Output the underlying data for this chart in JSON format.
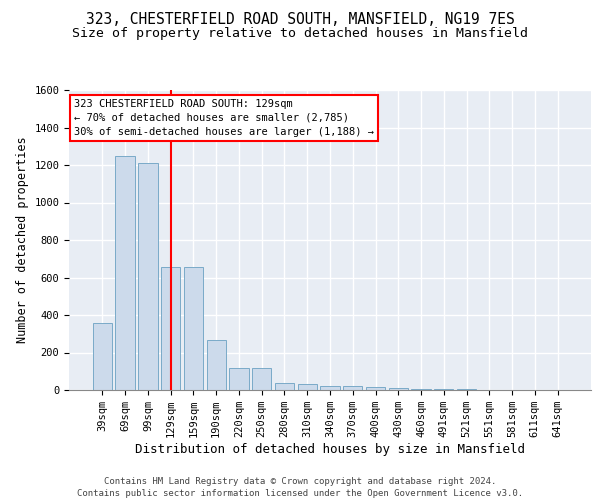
{
  "title1": "323, CHESTERFIELD ROAD SOUTH, MANSFIELD, NG19 7ES",
  "title2": "Size of property relative to detached houses in Mansfield",
  "xlabel": "Distribution of detached houses by size in Mansfield",
  "ylabel": "Number of detached properties",
  "footer": "Contains HM Land Registry data © Crown copyright and database right 2024.\nContains public sector information licensed under the Open Government Licence v3.0.",
  "categories": [
    "39sqm",
    "69sqm",
    "99sqm",
    "129sqm",
    "159sqm",
    "190sqm",
    "220sqm",
    "250sqm",
    "280sqm",
    "310sqm",
    "340sqm",
    "370sqm",
    "400sqm",
    "430sqm",
    "460sqm",
    "491sqm",
    "521sqm",
    "551sqm",
    "581sqm",
    "611sqm",
    "641sqm"
  ],
  "values": [
    360,
    1250,
    1210,
    655,
    655,
    265,
    115,
    115,
    40,
    30,
    20,
    20,
    15,
    10,
    5,
    5,
    5,
    2,
    2,
    2,
    2
  ],
  "bar_color": "#ccdaeb",
  "bar_edge_color": "#7aaac8",
  "red_line_index": 3,
  "annotation_text": "323 CHESTERFIELD ROAD SOUTH: 129sqm\n← 70% of detached houses are smaller (2,785)\n30% of semi-detached houses are larger (1,188) →",
  "ylim": [
    0,
    1600
  ],
  "yticks": [
    0,
    200,
    400,
    600,
    800,
    1000,
    1200,
    1400,
    1600
  ],
  "background_color": "#e8edf4",
  "grid_color": "#ffffff",
  "title1_fontsize": 10.5,
  "title2_fontsize": 9.5,
  "ylabel_fontsize": 8.5,
  "xlabel_fontsize": 9,
  "tick_fontsize": 7.5,
  "annotation_fontsize": 7.5,
  "footer_fontsize": 6.5
}
